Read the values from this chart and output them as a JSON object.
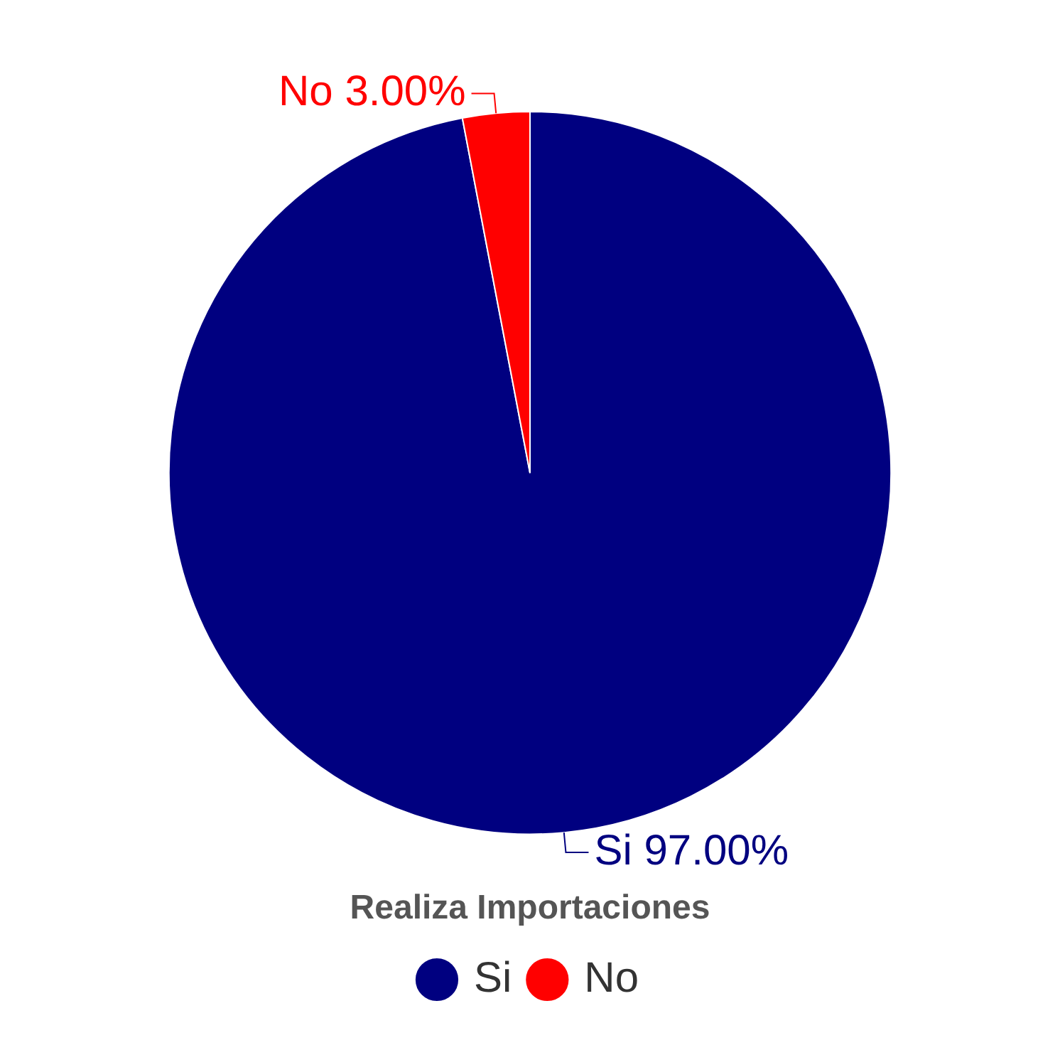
{
  "chart_data": {
    "type": "pie",
    "categories": [
      "Si",
      "No"
    ],
    "values": [
      97,
      3
    ],
    "colors": [
      "#000080",
      "#ff0000"
    ],
    "value_labels": [
      "Si 97.00%",
      "No 3.00%"
    ],
    "legend": "bottom",
    "legend_title": "Realiza Importaciones"
  }
}
